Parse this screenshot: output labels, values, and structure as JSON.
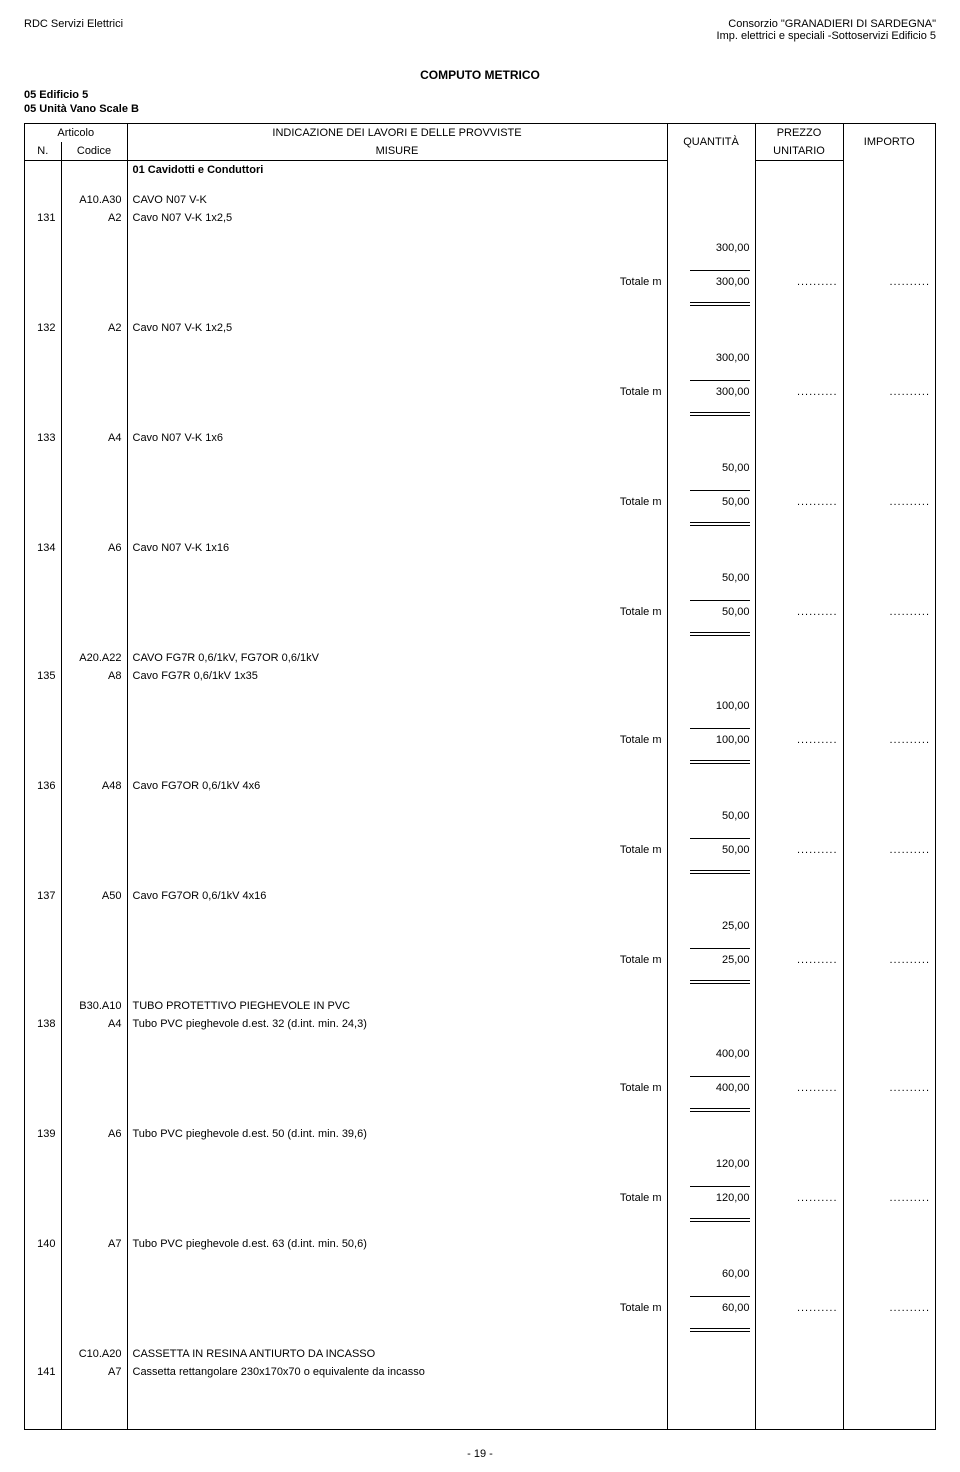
{
  "header": {
    "left": "RDC Servizi Elettrici",
    "right1": "Consorzio \"GRANADIERI DI SARDEGNA\"",
    "right2": "Imp. elettrici e speciali -Sottoservizi Edificio 5"
  },
  "title": "COMPUTO METRICO",
  "sub1": "05 Edificio 5",
  "sub2": "05 Unità Vano Scale B",
  "th": {
    "articolo": "Articolo",
    "indic": "INDICAZIONE DEI LAVORI E DELLE PROVVISTE",
    "quant": "QUANTITÀ",
    "prezzo": "PREZZO",
    "importo": "IMPORTO",
    "n": "N.",
    "codice": "Codice",
    "misure": "MISURE",
    "unitario": "UNITARIO"
  },
  "section_title": "01 Cavidotti e Conduttori",
  "groups": [
    {
      "heading_code": "A10.A30",
      "heading_desc": "CAVO N07 V-K",
      "items": [
        {
          "n": "131",
          "code": "A2",
          "desc": "Cavo N07 V-K 1x2,5",
          "val": "300,00",
          "tot_label": "Totale m",
          "tot": "300,00"
        },
        {
          "n": "132",
          "code": "A2",
          "desc": "Cavo N07 V-K 1x2,5",
          "val": "300,00",
          "tot_label": "Totale m",
          "tot": "300,00"
        },
        {
          "n": "133",
          "code": "A4",
          "desc": "Cavo N07 V-K 1x6",
          "val": "50,00",
          "tot_label": "Totale m",
          "tot": "50,00"
        },
        {
          "n": "134",
          "code": "A6",
          "desc": "Cavo N07 V-K 1x16",
          "val": "50,00",
          "tot_label": "Totale m",
          "tot": "50,00"
        }
      ]
    },
    {
      "heading_code": "A20.A22",
      "heading_desc": "CAVO FG7R 0,6/1kV, FG7OR 0,6/1kV",
      "items": [
        {
          "n": "135",
          "code": "A8",
          "desc": "Cavo FG7R 0,6/1kV 1x35",
          "val": "100,00",
          "tot_label": "Totale m",
          "tot": "100,00"
        },
        {
          "n": "136",
          "code": "A48",
          "desc": "Cavo FG7OR 0,6/1kV 4x6",
          "val": "50,00",
          "tot_label": "Totale m",
          "tot": "50,00"
        },
        {
          "n": "137",
          "code": "A50",
          "desc": "Cavo FG7OR 0,6/1kV 4x16",
          "val": "25,00",
          "tot_label": "Totale m",
          "tot": "25,00"
        }
      ]
    },
    {
      "heading_code": "B30.A10",
      "heading_desc": "TUBO PROTETTIVO PIEGHEVOLE IN PVC",
      "items": [
        {
          "n": "138",
          "code": "A4",
          "desc": "Tubo PVC pieghevole d.est. 32 (d.int. min. 24,3)",
          "val": "400,00",
          "tot_label": "Totale m",
          "tot": "400,00"
        },
        {
          "n": "139",
          "code": "A6",
          "desc": "Tubo PVC pieghevole d.est. 50 (d.int. min. 39,6)",
          "val": "120,00",
          "tot_label": "Totale m",
          "tot": "120,00"
        },
        {
          "n": "140",
          "code": "A7",
          "desc": "Tubo PVC pieghevole d.est. 63 (d.int. min. 50,6)",
          "val": "60,00",
          "tot_label": "Totale m",
          "tot": "60,00"
        }
      ]
    },
    {
      "heading_code": "C10.A20",
      "heading_desc": "CASSETTA IN RESINA ANTIURTO DA INCASSO",
      "items": [
        {
          "n": "141",
          "code": "A7",
          "desc": "Cassetta rettangolare 230x170x70 o equivalente da incasso"
        }
      ]
    }
  ],
  "dots": "..........",
  "footer": "- 19 -"
}
